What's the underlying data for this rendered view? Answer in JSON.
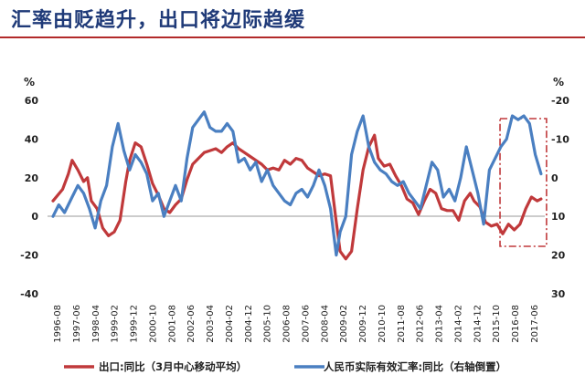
{
  "header": {
    "title": "汇率由贬趋升，出口将边际趋缓"
  },
  "chart_data": {
    "type": "line",
    "left_unit": "%",
    "right_unit": "%",
    "left_axis": {
      "ylim": [
        -40,
        60
      ],
      "ticks": [
        "60",
        "40",
        "20",
        "0",
        "-20",
        "-40"
      ]
    },
    "right_axis": {
      "ylim": [
        30,
        -20
      ],
      "inverted": true,
      "ticks": [
        "-20",
        "-10",
        "0",
        "10",
        "20",
        "30"
      ]
    },
    "x_ticks": [
      "1996-08",
      "1997-06",
      "1998-04",
      "1999-02",
      "1999-12",
      "2000-10",
      "2001-08",
      "2002-06",
      "2003-04",
      "2004-02",
      "2004-12",
      "2005-10",
      "2006-08",
      "2007-06",
      "2008-04",
      "2009-02",
      "2009-12",
      "2010-10",
      "2011-08",
      "2012-06",
      "2013-04",
      "2014-02",
      "2014-12",
      "2015-10",
      "2016-08",
      "2017-06"
    ],
    "series": [
      {
        "name": "出口:同比（3月中心移动平均）",
        "axis": "left",
        "color": "#c0393b",
        "points": [
          [
            "1996-08",
            8
          ],
          [
            "1997-01",
            14
          ],
          [
            "1997-04",
            22
          ],
          [
            "1997-06",
            29
          ],
          [
            "1997-09",
            24
          ],
          [
            "1997-12",
            18
          ],
          [
            "1998-02",
            20
          ],
          [
            "1998-04",
            8
          ],
          [
            "1998-07",
            4
          ],
          [
            "1998-10",
            -6
          ],
          [
            "1999-01",
            -10
          ],
          [
            "1999-04",
            -8
          ],
          [
            "1999-07",
            -2
          ],
          [
            "1999-10",
            18
          ],
          [
            "1999-12",
            29
          ],
          [
            "2000-03",
            38
          ],
          [
            "2000-06",
            36
          ],
          [
            "2000-09",
            27
          ],
          [
            "2000-12",
            17
          ],
          [
            "2001-03",
            11
          ],
          [
            "2001-06",
            4
          ],
          [
            "2001-09",
            2
          ],
          [
            "2001-12",
            6
          ],
          [
            "2002-03",
            9
          ],
          [
            "2002-06",
            19
          ],
          [
            "2002-09",
            27
          ],
          [
            "2002-12",
            30
          ],
          [
            "2003-03",
            33
          ],
          [
            "2003-06",
            34
          ],
          [
            "2003-09",
            35
          ],
          [
            "2003-12",
            33
          ],
          [
            "2004-03",
            36
          ],
          [
            "2004-06",
            38
          ],
          [
            "2004-09",
            35
          ],
          [
            "2004-12",
            33
          ],
          [
            "2005-03",
            31
          ],
          [
            "2005-06",
            29
          ],
          [
            "2005-09",
            27
          ],
          [
            "2005-12",
            24
          ],
          [
            "2006-03",
            25
          ],
          [
            "2006-06",
            24
          ],
          [
            "2006-09",
            29
          ],
          [
            "2006-12",
            27
          ],
          [
            "2007-03",
            30
          ],
          [
            "2007-06",
            29
          ],
          [
            "2007-09",
            25
          ],
          [
            "2007-12",
            23
          ],
          [
            "2008-03",
            21
          ],
          [
            "2008-06",
            22
          ],
          [
            "2008-09",
            21
          ],
          [
            "2008-12",
            -3
          ],
          [
            "2009-02",
            -18
          ],
          [
            "2009-05",
            -22
          ],
          [
            "2009-08",
            -18
          ],
          [
            "2009-11",
            4
          ],
          [
            "2010-02",
            24
          ],
          [
            "2010-05",
            36
          ],
          [
            "2010-08",
            42
          ],
          [
            "2010-10",
            30
          ],
          [
            "2011-01",
            26
          ],
          [
            "2011-04",
            27
          ],
          [
            "2011-07",
            21
          ],
          [
            "2011-10",
            16
          ],
          [
            "2012-01",
            9
          ],
          [
            "2012-04",
            7
          ],
          [
            "2012-07",
            1
          ],
          [
            "2012-10",
            8
          ],
          [
            "2013-01",
            14
          ],
          [
            "2013-04",
            12
          ],
          [
            "2013-07",
            4
          ],
          [
            "2013-10",
            3
          ],
          [
            "2014-01",
            3
          ],
          [
            "2014-04",
            -2
          ],
          [
            "2014-07",
            8
          ],
          [
            "2014-10",
            12
          ],
          [
            "2014-12",
            8
          ],
          [
            "2015-03",
            5
          ],
          [
            "2015-06",
            -3
          ],
          [
            "2015-09",
            -5
          ],
          [
            "2015-12",
            -4
          ],
          [
            "2016-03",
            -9
          ],
          [
            "2016-06",
            -4
          ],
          [
            "2016-09",
            -7
          ],
          [
            "2016-12",
            -4
          ],
          [
            "2017-03",
            4
          ],
          [
            "2017-06",
            10
          ],
          [
            "2017-09",
            8
          ],
          [
            "2017-11",
            9
          ]
        ]
      },
      {
        "name": "人民币实际有效汇率:同比（右轴倒置）",
        "axis": "right",
        "color": "#4a7fc1",
        "points": [
          [
            "1996-08",
            10
          ],
          [
            "1996-11",
            7
          ],
          [
            "1997-02",
            9
          ],
          [
            "1997-06",
            5
          ],
          [
            "1997-09",
            2
          ],
          [
            "1997-12",
            4
          ],
          [
            "1998-03",
            8
          ],
          [
            "1998-06",
            13
          ],
          [
            "1998-09",
            6
          ],
          [
            "1998-12",
            2
          ],
          [
            "1999-03",
            -8
          ],
          [
            "1999-06",
            -14
          ],
          [
            "1999-09",
            -7
          ],
          [
            "1999-12",
            -2
          ],
          [
            "2000-03",
            -6
          ],
          [
            "2000-06",
            -4
          ],
          [
            "2000-09",
            -1
          ],
          [
            "2000-12",
            6
          ],
          [
            "2001-03",
            4
          ],
          [
            "2001-06",
            10
          ],
          [
            "2001-09",
            6
          ],
          [
            "2001-12",
            2
          ],
          [
            "2002-03",
            6
          ],
          [
            "2002-06",
            -5
          ],
          [
            "2002-09",
            -13
          ],
          [
            "2002-12",
            -15
          ],
          [
            "2003-03",
            -17
          ],
          [
            "2003-06",
            -13
          ],
          [
            "2003-09",
            -12
          ],
          [
            "2003-12",
            -12
          ],
          [
            "2004-03",
            -14
          ],
          [
            "2004-06",
            -12
          ],
          [
            "2004-09",
            -4
          ],
          [
            "2004-12",
            -5
          ],
          [
            "2005-03",
            -2
          ],
          [
            "2005-06",
            -4
          ],
          [
            "2005-09",
            1
          ],
          [
            "2005-12",
            -2
          ],
          [
            "2006-03",
            2
          ],
          [
            "2006-06",
            4
          ],
          [
            "2006-09",
            6
          ],
          [
            "2006-12",
            7
          ],
          [
            "2007-03",
            4
          ],
          [
            "2007-06",
            3
          ],
          [
            "2007-09",
            5
          ],
          [
            "2007-12",
            2
          ],
          [
            "2008-03",
            -2
          ],
          [
            "2008-06",
            2
          ],
          [
            "2008-09",
            8
          ],
          [
            "2008-12",
            20
          ],
          [
            "2009-02",
            14
          ],
          [
            "2009-05",
            10
          ],
          [
            "2009-08",
            -6
          ],
          [
            "2009-11",
            -12
          ],
          [
            "2010-02",
            -16
          ],
          [
            "2010-05",
            -8
          ],
          [
            "2010-08",
            -4
          ],
          [
            "2010-11",
            -2
          ],
          [
            "2011-02",
            -1
          ],
          [
            "2011-05",
            1
          ],
          [
            "2011-08",
            2
          ],
          [
            "2011-11",
            1
          ],
          [
            "2012-02",
            4
          ],
          [
            "2012-05",
            6
          ],
          [
            "2012-08",
            8
          ],
          [
            "2012-11",
            2
          ],
          [
            "2013-02",
            -4
          ],
          [
            "2013-05",
            -2
          ],
          [
            "2013-08",
            5
          ],
          [
            "2013-11",
            3
          ],
          [
            "2014-02",
            6
          ],
          [
            "2014-05",
            0
          ],
          [
            "2014-08",
            -8
          ],
          [
            "2014-11",
            -2
          ],
          [
            "2015-02",
            4
          ],
          [
            "2015-05",
            12
          ],
          [
            "2015-08",
            -2
          ],
          [
            "2015-11",
            -5
          ],
          [
            "2016-02",
            -8
          ],
          [
            "2016-05",
            -10
          ],
          [
            "2016-08",
            -16
          ],
          [
            "2016-11",
            -15
          ],
          [
            "2017-02",
            -16
          ],
          [
            "2017-05",
            -14
          ],
          [
            "2017-08",
            -6
          ],
          [
            "2017-11",
            -1
          ]
        ]
      }
    ],
    "highlight": {
      "from": "2016-03",
      "to": "2017-11",
      "color": "#c0393b",
      "style": "dash-dot"
    },
    "legend_placement": "bottom",
    "grid": false
  }
}
